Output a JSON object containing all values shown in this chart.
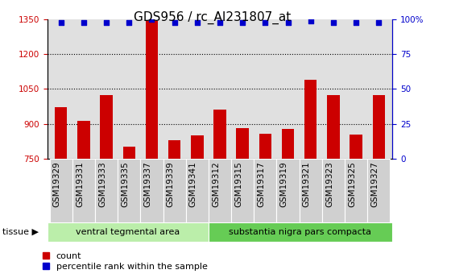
{
  "title": "GDS956 / rc_AI231807_at",
  "categories": [
    "GSM19329",
    "GSM19331",
    "GSM19333",
    "GSM19335",
    "GSM19337",
    "GSM19339",
    "GSM19341",
    "GSM19312",
    "GSM19315",
    "GSM19317",
    "GSM19319",
    "GSM19321",
    "GSM19323",
    "GSM19325",
    "GSM19327"
  ],
  "bar_values": [
    970,
    912,
    1025,
    800,
    1345,
    830,
    850,
    960,
    880,
    855,
    878,
    1090,
    1025,
    852,
    1025
  ],
  "pct_values": [
    98,
    98,
    98,
    98,
    100,
    98,
    98,
    98,
    98,
    98,
    98,
    99,
    98,
    98,
    98
  ],
  "bar_color": "#cc0000",
  "dot_color": "#0000cc",
  "ylim_left": [
    750,
    1350
  ],
  "ylim_right": [
    0,
    100
  ],
  "yticks_left": [
    750,
    900,
    1050,
    1200,
    1350
  ],
  "yticks_right": [
    0,
    25,
    50,
    75,
    100
  ],
  "grid_values": [
    900,
    1050,
    1200
  ],
  "tissue_groups": [
    {
      "label": "ventral tegmental area",
      "start": 0,
      "end": 7,
      "color": "#bbeeaa"
    },
    {
      "label": "substantia nigra pars compacta",
      "start": 7,
      "end": 15,
      "color": "#66cc55"
    }
  ],
  "tissue_label": "tissue",
  "legend_count_label": "count",
  "legend_pct_label": "percentile rank within the sample",
  "bg_color": "#ffffff",
  "plot_bg_color": "#e0e0e0",
  "xtick_bg_color": "#d0d0d0",
  "title_fontsize": 11,
  "tick_fontsize": 7.5,
  "axis_label_color_left": "#cc0000",
  "axis_label_color_right": "#0000cc"
}
